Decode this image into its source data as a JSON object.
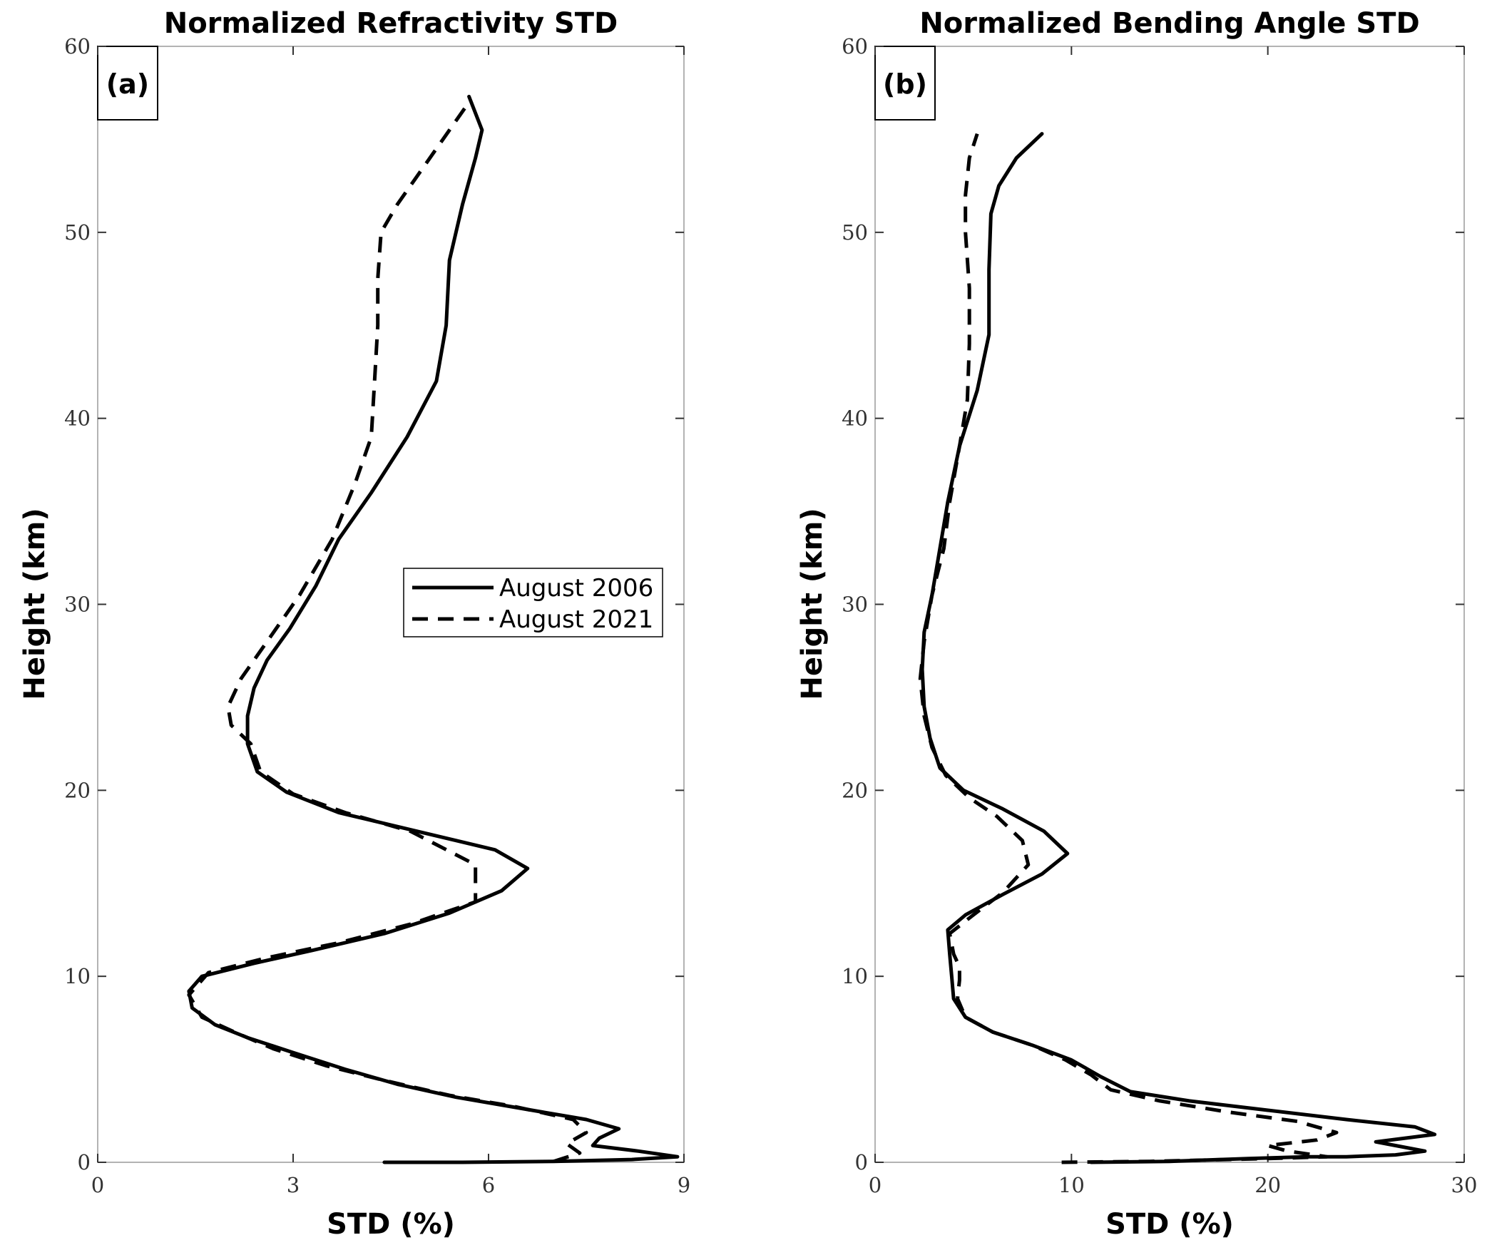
{
  "chart_data": [
    {
      "type": "line",
      "panel": "(a)",
      "title": "Normalized Refractivity STD",
      "xlabel": "STD (%)",
      "ylabel": "Height (km)",
      "xlim": [
        0,
        9
      ],
      "ylim": [
        0,
        60
      ],
      "xticks": [
        0,
        3,
        6,
        9
      ],
      "yticks": [
        0,
        10,
        20,
        30,
        40,
        50,
        60
      ],
      "legend": {
        "placement": "center-right",
        "entries": [
          "August 2006",
          "August 2021"
        ]
      },
      "series": [
        {
          "name": "August 2006",
          "style": "solid",
          "points": [
            [
              4.4,
              0.0
            ],
            [
              5.6,
              0.0
            ],
            [
              7.0,
              0.05
            ],
            [
              8.2,
              0.15
            ],
            [
              8.9,
              0.3
            ],
            [
              8.3,
              0.6
            ],
            [
              7.6,
              0.9
            ],
            [
              7.7,
              1.3
            ],
            [
              8.0,
              1.8
            ],
            [
              7.5,
              2.3
            ],
            [
              6.5,
              2.9
            ],
            [
              5.5,
              3.5
            ],
            [
              4.6,
              4.2
            ],
            [
              3.8,
              5.0
            ],
            [
              3.0,
              5.9
            ],
            [
              2.3,
              6.7
            ],
            [
              1.8,
              7.4
            ],
            [
              1.45,
              8.3
            ],
            [
              1.4,
              9.2
            ],
            [
              1.6,
              10.0
            ],
            [
              2.4,
              10.7
            ],
            [
              3.3,
              11.4
            ],
            [
              4.4,
              12.3
            ],
            [
              5.4,
              13.4
            ],
            [
              6.2,
              14.6
            ],
            [
              6.6,
              15.8
            ],
            [
              6.1,
              16.8
            ],
            [
              4.9,
              17.8
            ],
            [
              3.7,
              18.8
            ],
            [
              2.9,
              19.9
            ],
            [
              2.45,
              21.0
            ],
            [
              2.3,
              22.5
            ],
            [
              2.3,
              24.0
            ],
            [
              2.4,
              25.5
            ],
            [
              2.6,
              27.0
            ],
            [
              2.95,
              28.7
            ],
            [
              3.35,
              31.0
            ],
            [
              3.7,
              33.5
            ],
            [
              4.2,
              36.0
            ],
            [
              4.75,
              39.0
            ],
            [
              5.2,
              42.0
            ],
            [
              5.35,
              45.0
            ],
            [
              5.4,
              48.5
            ],
            [
              5.6,
              51.5
            ],
            [
              5.8,
              54.0
            ],
            [
              5.9,
              55.5
            ],
            [
              5.7,
              57.3
            ]
          ]
        },
        {
          "name": "August 2021",
          "style": "dashed",
          "points": [
            [
              7.0,
              0.05
            ],
            [
              7.4,
              0.5
            ],
            [
              7.2,
              1.0
            ],
            [
              7.5,
              1.6
            ],
            [
              7.3,
              2.3
            ],
            [
              6.4,
              3.0
            ],
            [
              5.4,
              3.6
            ],
            [
              4.4,
              4.4
            ],
            [
              3.5,
              5.2
            ],
            [
              2.7,
              6.1
            ],
            [
              2.1,
              7.0
            ],
            [
              1.6,
              7.8
            ],
            [
              1.4,
              9.0
            ],
            [
              1.7,
              10.2
            ],
            [
              2.6,
              11.0
            ],
            [
              3.7,
              11.8
            ],
            [
              4.8,
              12.8
            ],
            [
              5.8,
              14.0
            ],
            [
              5.8,
              16.0
            ],
            [
              4.8,
              17.8
            ],
            [
              3.8,
              18.8
            ],
            [
              3.0,
              19.8
            ],
            [
              2.5,
              21.0
            ],
            [
              2.35,
              22.5
            ],
            [
              2.05,
              23.5
            ],
            [
              2.0,
              24.5
            ],
            [
              2.2,
              26.0
            ],
            [
              2.6,
              28.0
            ],
            [
              3.1,
              30.5
            ],
            [
              3.6,
              33.5
            ],
            [
              3.95,
              36.5
            ],
            [
              4.2,
              39.0
            ],
            [
              4.25,
              42.0
            ],
            [
              4.3,
              45.0
            ],
            [
              4.3,
              47.5
            ],
            [
              4.35,
              50.0
            ],
            [
              4.6,
              51.5
            ],
            [
              5.0,
              53.5
            ],
            [
              5.4,
              55.5
            ],
            [
              5.7,
              57.0
            ]
          ]
        }
      ]
    },
    {
      "type": "line",
      "panel": "(b)",
      "title": "Normalized Bending Angle STD",
      "xlabel": "STD (%)",
      "ylabel": "Height (km)",
      "xlim": [
        0,
        30
      ],
      "ylim": [
        0,
        60
      ],
      "xticks": [
        0,
        10,
        20,
        30
      ],
      "yticks": [
        0,
        10,
        20,
        30,
        40,
        50,
        60
      ],
      "series": [
        {
          "name": "August 2006",
          "style": "solid",
          "points": [
            [
              11.0,
              0.0
            ],
            [
              15.0,
              0.05
            ],
            [
              19.0,
              0.2
            ],
            [
              22.0,
              0.3
            ],
            [
              24.0,
              0.3
            ],
            [
              26.5,
              0.4
            ],
            [
              28.0,
              0.6
            ],
            [
              26.5,
              0.9
            ],
            [
              25.5,
              1.1
            ],
            [
              27.0,
              1.3
            ],
            [
              28.5,
              1.5
            ],
            [
              27.5,
              1.9
            ],
            [
              24.0,
              2.3
            ],
            [
              20.0,
              2.8
            ],
            [
              16.0,
              3.3
            ],
            [
              13.0,
              3.8
            ],
            [
              11.5,
              4.6
            ],
            [
              10.0,
              5.5
            ],
            [
              8.0,
              6.3
            ],
            [
              6.0,
              7.0
            ],
            [
              4.6,
              7.8
            ],
            [
              4.0,
              8.8
            ],
            [
              3.9,
              10.0
            ],
            [
              3.8,
              11.2
            ],
            [
              3.7,
              12.5
            ],
            [
              4.6,
              13.3
            ],
            [
              6.5,
              14.4
            ],
            [
              8.5,
              15.5
            ],
            [
              9.8,
              16.6
            ],
            [
              8.6,
              17.8
            ],
            [
              6.5,
              19.0
            ],
            [
              4.5,
              20.0
            ],
            [
              3.3,
              21.2
            ],
            [
              2.8,
              22.8
            ],
            [
              2.5,
              24.5
            ],
            [
              2.4,
              26.5
            ],
            [
              2.5,
              28.5
            ],
            [
              2.9,
              30.5
            ],
            [
              3.3,
              33.0
            ],
            [
              3.7,
              35.5
            ],
            [
              4.3,
              38.5
            ],
            [
              5.2,
              41.5
            ],
            [
              5.8,
              44.5
            ],
            [
              5.8,
              48.0
            ],
            [
              5.9,
              51.0
            ],
            [
              6.3,
              52.5
            ],
            [
              7.2,
              54.0
            ],
            [
              8.5,
              55.3
            ]
          ]
        },
        {
          "name": "August 2021",
          "style": "dashed",
          "points": [
            [
              9.5,
              0.0
            ],
            [
              14.0,
              0.05
            ],
            [
              20.0,
              0.2
            ],
            [
              23.0,
              0.3
            ],
            [
              21.0,
              0.6
            ],
            [
              20.0,
              0.9
            ],
            [
              22.5,
              1.2
            ],
            [
              23.5,
              1.6
            ],
            [
              21.5,
              2.2
            ],
            [
              18.0,
              2.7
            ],
            [
              14.5,
              3.3
            ],
            [
              12.0,
              3.9
            ],
            [
              11.0,
              4.7
            ],
            [
              9.7,
              5.5
            ],
            [
              8.0,
              6.3
            ],
            [
              6.0,
              7.0
            ],
            [
              4.6,
              7.8
            ],
            [
              4.2,
              8.8
            ],
            [
              4.3,
              9.8
            ],
            [
              4.3,
              10.5
            ],
            [
              4.0,
              11.2
            ],
            [
              3.8,
              12.3
            ],
            [
              5.0,
              13.3
            ],
            [
              6.5,
              14.5
            ],
            [
              7.8,
              16.0
            ],
            [
              7.5,
              17.3
            ],
            [
              6.2,
              18.6
            ],
            [
              4.8,
              19.6
            ],
            [
              3.6,
              20.8
            ],
            [
              2.9,
              22.3
            ],
            [
              2.5,
              24.0
            ],
            [
              2.3,
              26.0
            ],
            [
              2.5,
              28.0
            ],
            [
              2.9,
              30.5
            ],
            [
              3.5,
              33.0
            ],
            [
              3.8,
              35.5
            ],
            [
              4.3,
              38.5
            ],
            [
              4.7,
              41.0
            ],
            [
              4.8,
              44.0
            ],
            [
              4.8,
              47.0
            ],
            [
              4.6,
              50.0
            ],
            [
              4.6,
              52.0
            ],
            [
              4.8,
              54.0
            ],
            [
              5.2,
              55.3
            ]
          ]
        }
      ]
    }
  ]
}
